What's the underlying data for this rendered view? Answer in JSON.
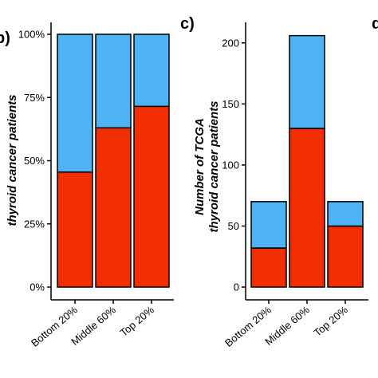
{
  "colors": {
    "top_segment": "#4DB3F5",
    "bottom_segment": "#F22D00",
    "outline": "#000000"
  },
  "left_panel": {
    "letter": "b)"
  },
  "right_panel": {
    "letter": "c)",
    "cut_letter": "d"
  },
  "chart_data": [
    {
      "type": "bar",
      "stacked": true,
      "percent": true,
      "categories": [
        "Bottom 20%",
        "Middle 60%",
        "Top 20%"
      ],
      "series": [
        {
          "values": [
            45.5,
            63,
            71.5
          ]
        },
        {
          "values": [
            54.5,
            37,
            28.5
          ]
        }
      ],
      "ylabel": "thyroid cancer patients",
      "ylim": [
        0,
        100
      ],
      "yticks": [
        "0%",
        "25%",
        "50%",
        "75%",
        "100%"
      ],
      "ytick_values": [
        0,
        25,
        50,
        75,
        100
      ],
      "grid": false
    },
    {
      "type": "bar",
      "stacked": true,
      "categories": [
        "Bottom 20%",
        "Middle 60%",
        "Top 20%"
      ],
      "series": [
        {
          "values": [
            32,
            130,
            50
          ]
        },
        {
          "values": [
            38,
            76,
            20
          ]
        }
      ],
      "ylabel_lines": [
        "Number of TCGA",
        "thyroid cancer patients"
      ],
      "ylim": [
        0,
        210
      ],
      "yticks": [
        "0",
        "50",
        "100",
        "150",
        "200"
      ],
      "ytick_values": [
        0,
        50,
        100,
        150,
        200
      ],
      "grid": false
    }
  ]
}
